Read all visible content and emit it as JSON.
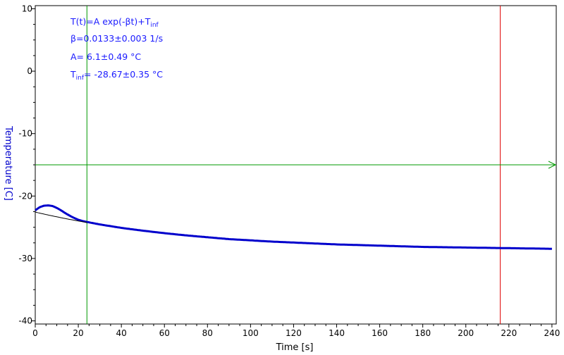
{
  "chart_data": {
    "type": "scatter",
    "xlabel": "Time [s]",
    "ylabel": "Temperature [C]",
    "xlim": [
      0,
      242
    ],
    "ylim": [
      -40.5,
      10.5
    ],
    "x_ticks": [
      0,
      20,
      40,
      60,
      80,
      100,
      120,
      140,
      160,
      180,
      200,
      220,
      240
    ],
    "y_ticks": [
      10,
      0,
      -10,
      -20,
      -30,
      -40
    ],
    "x_tick_labels": [
      "0",
      "20",
      "40",
      "60",
      "80",
      "100",
      "120",
      "140",
      "160",
      "180",
      "200",
      "220",
      "240"
    ],
    "y_tick_labels": [
      "10",
      "0",
      "-10",
      "-20",
      "-30",
      "-40"
    ],
    "annotations": {
      "formula_main": "T(t)=A exp(-βt)+T",
      "formula_sub": "inf",
      "beta": "β=0.0133±0.003 1/s",
      "amplitude": "A= 6.1±0.49 °C",
      "tinf_prefix": "T",
      "tinf_sub": "inf",
      "tinf_value": "= -28.67±0.35 °C"
    },
    "fit": {
      "A": 6.1,
      "beta": 0.0133,
      "T_inf": -28.67
    },
    "measured": {
      "x": [
        0,
        2,
        4,
        6,
        8,
        10,
        12,
        14,
        16,
        18,
        20,
        22,
        24,
        30,
        40,
        50,
        60,
        70,
        80,
        90,
        100,
        110,
        120,
        130,
        140,
        150,
        160,
        170,
        180,
        190,
        200,
        210,
        220,
        230,
        240
      ],
      "y": [
        -22.3,
        -21.8,
        -21.55,
        -21.5,
        -21.6,
        -21.9,
        -22.3,
        -22.75,
        -23.15,
        -23.5,
        -23.8,
        -24.0,
        -24.15,
        -24.55,
        -25.1,
        -25.55,
        -25.95,
        -26.3,
        -26.6,
        -26.9,
        -27.1,
        -27.3,
        -27.45,
        -27.6,
        -27.75,
        -27.85,
        -27.95,
        -28.05,
        -28.15,
        -28.2,
        -28.25,
        -28.3,
        -28.35,
        -28.4,
        -28.45
      ]
    },
    "cursors": {
      "vertical_green_x": 24,
      "vertical_red_x": 216,
      "horizontal_green_y": -15
    },
    "colors": {
      "data": "#0000cc",
      "fit": "#000000",
      "green_cursor": "#009900",
      "red_cursor": "#e00000",
      "ylabel": "#0000cc",
      "annotation": "#1a1aff"
    }
  }
}
